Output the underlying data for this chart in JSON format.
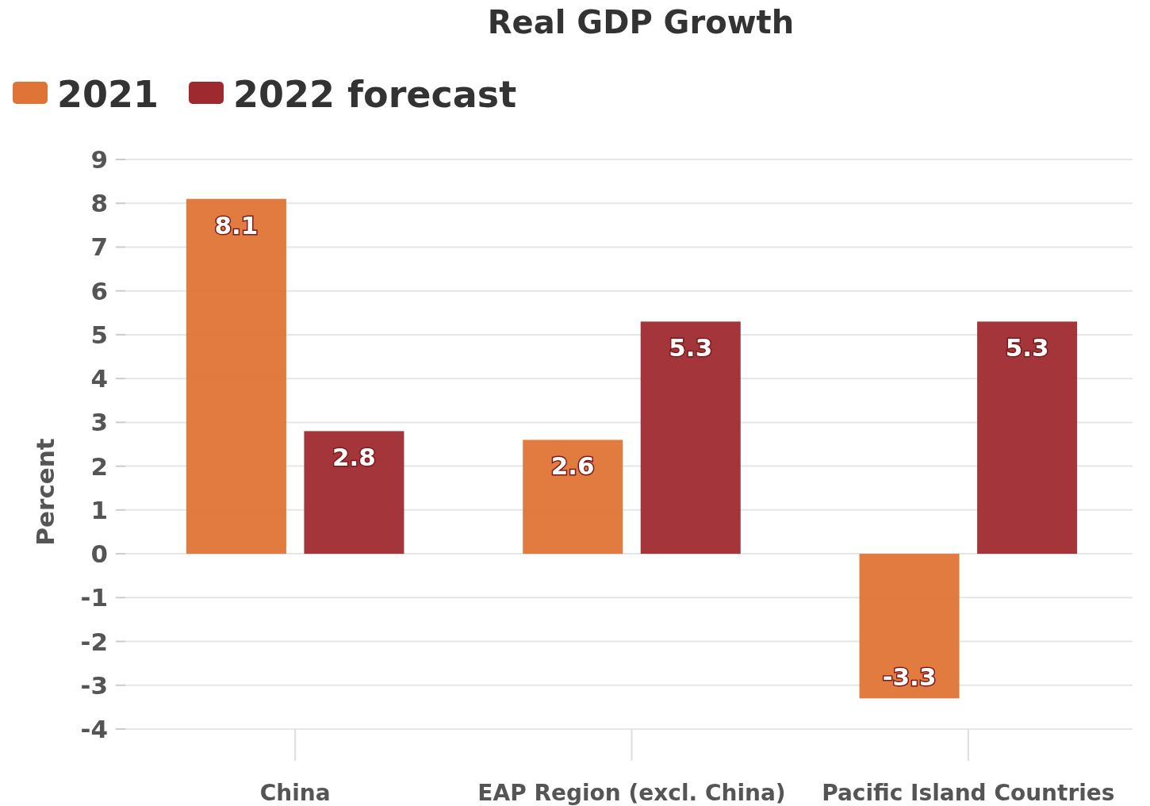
{
  "chart_data": {
    "type": "bar",
    "title": "Real GDP Growth",
    "ylabel": "Percent",
    "categories": [
      "China",
      "EAP Region (excl. China)",
      "Pacific Island Countries"
    ],
    "series": [
      {
        "name": "2021",
        "color": "#e07436",
        "values": [
          8.1,
          2.6,
          -3.3
        ]
      },
      {
        "name": "2022 forecast",
        "color": "#9e2a30",
        "values": [
          2.8,
          5.3,
          5.3
        ]
      }
    ],
    "ylim": [
      -4,
      9
    ],
    "yticks": [
      -4,
      -3,
      -2,
      -1,
      0,
      1,
      2,
      3,
      4,
      5,
      6,
      7,
      8,
      9
    ],
    "grid": "y",
    "legend": "top left",
    "data_labels": true
  }
}
